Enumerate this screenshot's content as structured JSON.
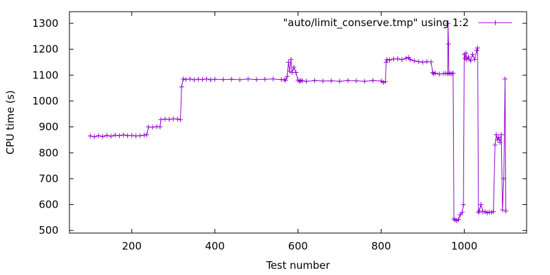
{
  "chart_data": {
    "type": "line",
    "title": "",
    "xlabel": "Test number",
    "ylabel": "CPU time (s)",
    "xlim": [
      50,
      1150
    ],
    "ylim": [
      490,
      1345
    ],
    "xticks": [
      200,
      400,
      600,
      800,
      1000
    ],
    "yticks": [
      500,
      600,
      700,
      800,
      900,
      1000,
      1100,
      1200,
      1300
    ],
    "legend_position": "top-right",
    "grid": false,
    "series": [
      {
        "name": "\"auto/limit_conserve.tmp\" using 1:2",
        "color": "#9400d3",
        "marker": "plus",
        "x": [
          100,
          110,
          120,
          130,
          140,
          150,
          160,
          170,
          180,
          190,
          200,
          210,
          220,
          230,
          236,
          240,
          250,
          260,
          268,
          270,
          280,
          290,
          300,
          310,
          317,
          320,
          324,
          330,
          340,
          350,
          360,
          370,
          380,
          390,
          400,
          420,
          440,
          460,
          480,
          500,
          520,
          540,
          560,
          567,
          570,
          574,
          577,
          580,
          583,
          586,
          590,
          595,
          600,
          604,
          606,
          610,
          620,
          640,
          660,
          680,
          700,
          720,
          740,
          760,
          780,
          800,
          805,
          810,
          812,
          814,
          820,
          830,
          840,
          850,
          860,
          866,
          870,
          880,
          890,
          900,
          910,
          920,
          924,
          926,
          930,
          940,
          950,
          955,
          960,
          961,
          962,
          963,
          966,
          970,
          973,
          975,
          978,
          982,
          986,
          990,
          995,
          998,
          1000,
          1002,
          1004,
          1006,
          1010,
          1015,
          1020,
          1025,
          1030,
          1032,
          1034,
          1036,
          1040,
          1045,
          1050,
          1055,
          1060,
          1065,
          1070,
          1074,
          1077,
          1080,
          1083,
          1086,
          1089,
          1092,
          1095,
          1098,
          1100
        ],
        "y": [
          865,
          862,
          866,
          863,
          867,
          864,
          868,
          866,
          869,
          866,
          867,
          865,
          866,
          868,
          870,
          900,
          899,
          901,
          900,
          928,
          930,
          929,
          931,
          930,
          928,
          1055,
          1085,
          1083,
          1085,
          1082,
          1084,
          1083,
          1085,
          1082,
          1084,
          1083,
          1084,
          1082,
          1085,
          1083,
          1084,
          1085,
          1083,
          1082,
          1080,
          1095,
          1150,
          1115,
          1160,
          1110,
          1130,
          1110,
          1080,
          1075,
          1080,
          1078,
          1076,
          1079,
          1077,
          1078,
          1076,
          1079,
          1078,
          1076,
          1079,
          1077,
          1072,
          1075,
          1150,
          1160,
          1158,
          1162,
          1163,
          1160,
          1165,
          1168,
          1160,
          1155,
          1152,
          1150,
          1152,
          1151,
          1110,
          1105,
          1108,
          1104,
          1106,
          1107,
          1105,
          1300,
          1220,
          1108,
          1106,
          1105,
          1108,
          545,
          540,
          538,
          542,
          560,
          570,
          600,
          1180,
          1165,
          1185,
          1160,
          1170,
          1155,
          1180,
          1160,
          1195,
          1205,
          570,
          575,
          600,
          572,
          573,
          568,
          571,
          570,
          573,
          830,
          870,
          850,
          860,
          840,
          870,
          580,
          700,
          1085,
          575
        ]
      }
    ]
  }
}
